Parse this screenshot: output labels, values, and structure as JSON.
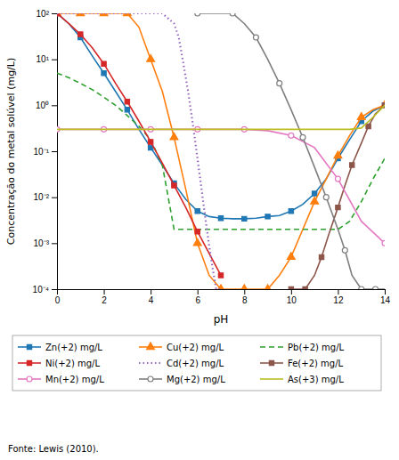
{
  "chart_data": {
    "type": "line",
    "xlabel": "pH",
    "ylabel": "Concentração do metal solúvel (mg/L)",
    "annotations": [
      "Fonte: Lewis (2010)."
    ],
    "log": "y",
    "grid": false,
    "legend": "bottom",
    "xlim": [
      0,
      14
    ],
    "xticks": [
      0,
      2,
      4,
      6,
      8,
      10,
      12,
      14
    ],
    "ylim": [
      0.0001,
      100
    ],
    "yticks": [
      {
        "value": 0.0001,
        "label": "10⁻⁴"
      },
      {
        "value": 0.001,
        "label": "10⁻³"
      },
      {
        "value": 0.01,
        "label": "10⁻²"
      },
      {
        "value": 0.1,
        "label": "10⁻¹"
      },
      {
        "value": 1,
        "label": "10⁰"
      },
      {
        "value": 10,
        "label": "10¹"
      },
      {
        "value": 100,
        "label": "10²"
      }
    ],
    "series": [
      {
        "name": "Zn(+2) mg/L",
        "marker": "square",
        "line_style": "solid",
        "x": [
          0,
          0.5,
          1,
          1.5,
          2,
          2.5,
          3,
          3.5,
          4,
          4.5,
          5,
          5.5,
          6,
          6.5,
          7,
          7.5,
          8,
          8.5,
          9,
          9.5,
          10,
          10.5,
          11,
          11.5,
          12,
          12.5,
          13,
          13.5,
          14
        ],
        "values": [
          100,
          60,
          30,
          12,
          5,
          2,
          0.8,
          0.3,
          0.12,
          0.05,
          0.02,
          0.009,
          0.005,
          0.0038,
          0.0035,
          0.0034,
          0.0034,
          0.0035,
          0.0038,
          0.004,
          0.005,
          0.007,
          0.012,
          0.025,
          0.07,
          0.18,
          0.45,
          0.75,
          1.0
        ]
      },
      {
        "name": "Cu(+2) mg/L",
        "marker": "triangle",
        "line_style": "solid",
        "x": [
          0,
          0.5,
          1,
          1.5,
          2,
          2.5,
          3,
          3.5,
          4,
          4.5,
          5,
          5.5,
          6,
          6.5,
          7,
          7.5,
          8,
          8.5,
          9,
          9.5,
          10,
          10.5,
          11,
          11.5,
          12,
          12.5,
          13,
          13.5,
          14
        ],
        "values": [
          100,
          100,
          100,
          100,
          100,
          100,
          100,
          50,
          10,
          2,
          0.2,
          0.015,
          0.001,
          0.0002,
          0.0001,
          0.0001,
          0.0001,
          0.0001,
          0.0001,
          0.0002,
          0.0005,
          0.002,
          0.008,
          0.025,
          0.08,
          0.22,
          0.55,
          0.8,
          1.0
        ]
      },
      {
        "name": "Pb(+2) mg/L",
        "marker": "none",
        "line_style": "dashed",
        "x": [
          0,
          0.5,
          1,
          1.5,
          2,
          2.5,
          3,
          3.5,
          4,
          4.5,
          5,
          5.5,
          6,
          7,
          8,
          9,
          10,
          11,
          11.5,
          12,
          12.5,
          13,
          13.5,
          14
        ],
        "values": [
          5,
          4,
          3,
          2.2,
          1.5,
          1.0,
          0.6,
          0.35,
          0.18,
          0.05,
          0.002,
          0.002,
          0.002,
          0.002,
          0.002,
          0.002,
          0.002,
          0.002,
          0.002,
          0.002,
          0.003,
          0.008,
          0.025,
          0.07
        ]
      },
      {
        "name": "Ni(+2) mg/L",
        "marker": "square",
        "line_style": "solid",
        "x": [
          0,
          0.5,
          1,
          1.5,
          2,
          2.5,
          3,
          3.5,
          4,
          4.5,
          5,
          5.5,
          6,
          6.5,
          7
        ],
        "values": [
          100,
          60,
          35,
          18,
          8,
          3,
          1.2,
          0.45,
          0.16,
          0.055,
          0.018,
          0.006,
          0.0018,
          0.0006,
          0.0002
        ]
      },
      {
        "name": "Cd(+2) mg/L",
        "marker": "none",
        "line_style": "dotted",
        "x": [
          0,
          1,
          2,
          3,
          4,
          4.5,
          5,
          5.2,
          5.4,
          5.6,
          5.8,
          6,
          6.2,
          6.4,
          6.6,
          6.8,
          7
        ],
        "values": [
          100,
          100,
          100,
          100,
          100,
          100,
          60,
          30,
          8,
          2,
          0.4,
          0.07,
          0.012,
          0.002,
          0.0004,
          0.0001,
          0.0001
        ]
      },
      {
        "name": "Fe(+2) mg/L",
        "marker": "square",
        "line_style": "solid",
        "x": [
          10,
          10.3,
          10.6,
          11,
          11.3,
          11.6,
          12,
          12.3,
          12.6,
          13,
          13.3,
          13.6,
          14
        ],
        "values": [
          0.0001,
          0.0001,
          0.0001,
          0.0002,
          0.0005,
          0.0015,
          0.006,
          0.018,
          0.05,
          0.15,
          0.35,
          0.65,
          1.0
        ]
      },
      {
        "name": "Mn(+2) mg/L",
        "marker": "open-circle",
        "line_style": "solid",
        "x": [
          0,
          1,
          2,
          3,
          4,
          5,
          6,
          7,
          8,
          9,
          10,
          11,
          12,
          13,
          14
        ],
        "values": [
          0.3,
          0.3,
          0.3,
          0.3,
          0.3,
          0.3,
          0.3,
          0.3,
          0.3,
          0.28,
          0.22,
          0.12,
          0.025,
          0.003,
          0.001
        ]
      },
      {
        "name": "Mg(+2) mg/L",
        "marker": "open-circle",
        "line_style": "solid",
        "x": [
          6,
          7,
          7.5,
          8,
          8.5,
          9,
          9.5,
          10,
          10.5,
          11,
          11.5,
          12,
          12.3,
          12.6,
          13,
          13.3,
          13.6,
          14
        ],
        "values": [
          100,
          100,
          100,
          60,
          30,
          10,
          3,
          0.8,
          0.2,
          0.045,
          0.01,
          0.002,
          0.0007,
          0.0002,
          0.0001,
          0.0001,
          0.0001,
          0.0001
        ]
      },
      {
        "name": "As(+3) mg/L",
        "marker": "none",
        "line_style": "solid",
        "x": [
          0,
          2,
          4,
          6,
          8,
          10,
          12,
          12.5,
          13,
          13.5,
          14
        ],
        "values": [
          0.3,
          0.3,
          0.3,
          0.3,
          0.3,
          0.3,
          0.3,
          0.3,
          0.32,
          0.55,
          1.0
        ]
      }
    ]
  }
}
